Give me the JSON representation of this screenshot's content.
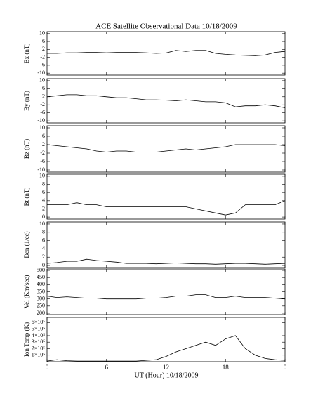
{
  "chart_data": [
    {
      "type": "line",
      "title": "ACE Satellite Observational Data   10/18/2009",
      "ylabel": "Bx (nT)",
      "color": "#000000",
      "x": [
        0,
        1,
        2,
        3,
        4,
        5,
        6,
        7,
        8,
        9,
        10,
        11,
        12,
        13,
        14,
        15,
        16,
        17,
        18,
        19,
        20,
        21,
        22,
        23,
        24
      ],
      "values": [
        0,
        0,
        0.3,
        0.3,
        0.5,
        0.5,
        0.3,
        0.5,
        0.5,
        0.5,
        0.3,
        0,
        0.2,
        1.5,
        1,
        1.5,
        1.5,
        0,
        -0.5,
        -0.8,
        -1,
        -1.2,
        -0.8,
        0.5,
        1
      ],
      "ylim": [
        -11,
        11
      ],
      "yticks": [
        -10,
        -6,
        -2,
        2,
        6,
        10
      ],
      "xlim": [
        0,
        24
      ]
    },
    {
      "type": "line",
      "ylabel": "By (nT)",
      "color": "#000000",
      "x": [
        0,
        1,
        2,
        3,
        4,
        5,
        6,
        7,
        8,
        9,
        10,
        11,
        12,
        13,
        14,
        15,
        16,
        17,
        18,
        19,
        20,
        21,
        22,
        23,
        24
      ],
      "values": [
        2,
        2.5,
        3,
        3,
        2.5,
        2.5,
        2,
        1.5,
        1.5,
        1,
        0.5,
        0.5,
        0.3,
        0,
        0.5,
        0,
        -0.5,
        -0.5,
        -1,
        -3,
        -2.5,
        -2.5,
        -2,
        -2.5,
        -3.5
      ],
      "ylim": [
        -11,
        11
      ],
      "yticks": [
        -10,
        -6,
        -2,
        2,
        6,
        10
      ],
      "xlim": [
        0,
        24
      ]
    },
    {
      "type": "line",
      "ylabel": "Bz (nT)",
      "color": "#000000",
      "x": [
        0,
        1,
        2,
        3,
        4,
        5,
        6,
        7,
        8,
        9,
        10,
        11,
        12,
        13,
        14,
        15,
        16,
        17,
        18,
        19,
        20,
        21,
        22,
        23,
        24
      ],
      "values": [
        2,
        1.5,
        1,
        0.5,
        0,
        -1,
        -1.5,
        -1,
        -1,
        -1.5,
        -1.5,
        -1.5,
        -1,
        -0.5,
        0,
        -0.5,
        0,
        0.5,
        1,
        2,
        2,
        2,
        2,
        2,
        1.5
      ],
      "ylim": [
        -11,
        11
      ],
      "yticks": [
        -10,
        -6,
        -2,
        2,
        6,
        10
      ],
      "xlim": [
        0,
        24
      ]
    },
    {
      "type": "line",
      "ylabel": "Bt (nT)",
      "color": "#000000",
      "x": [
        0,
        1,
        2,
        3,
        4,
        5,
        6,
        7,
        8,
        9,
        10,
        11,
        12,
        13,
        14,
        15,
        16,
        17,
        18,
        19,
        20,
        21,
        22,
        23,
        24
      ],
      "values": [
        3,
        3,
        3,
        3.5,
        3,
        3,
        2.5,
        2.5,
        2.5,
        2.5,
        2.5,
        2.5,
        2.5,
        2.5,
        2.5,
        2,
        1.5,
        1,
        0.5,
        1,
        3,
        3,
        3,
        3,
        4
      ],
      "ylim": [
        -0.5,
        10.5
      ],
      "yticks": [
        0,
        2,
        4,
        6,
        8,
        10
      ],
      "xlim": [
        0,
        24
      ]
    },
    {
      "type": "line",
      "ylabel": "Den (1/cc)",
      "color": "#000000",
      "x": [
        0,
        1,
        2,
        3,
        4,
        5,
        6,
        7,
        8,
        9,
        10,
        11,
        12,
        13,
        14,
        15,
        16,
        17,
        18,
        19,
        20,
        21,
        22,
        23,
        24
      ],
      "values": [
        0.5,
        0.7,
        1,
        1,
        1.5,
        1.2,
        1,
        0.8,
        0.5,
        0.5,
        0.5,
        0.4,
        0.5,
        0.6,
        0.5,
        0.4,
        0.4,
        0.3,
        0.4,
        0.5,
        0.5,
        0.4,
        0.3,
        0.4,
        0.5
      ],
      "ylim": [
        -0.5,
        10.5
      ],
      "yticks": [
        0,
        2,
        4,
        6,
        8,
        10
      ],
      "xlim": [
        0,
        24
      ]
    },
    {
      "type": "line",
      "ylabel": "Vel (Km/sec)",
      "color": "#000000",
      "x": [
        0,
        1,
        2,
        3,
        4,
        5,
        6,
        7,
        8,
        9,
        10,
        11,
        12,
        13,
        14,
        15,
        16,
        17,
        18,
        19,
        20,
        21,
        22,
        23,
        24
      ],
      "values": [
        320,
        310,
        315,
        310,
        305,
        305,
        300,
        300,
        300,
        300,
        305,
        305,
        310,
        320,
        320,
        330,
        330,
        310,
        310,
        320,
        310,
        310,
        310,
        305,
        300
      ],
      "ylim": [
        190,
        510
      ],
      "yticks": [
        200,
        250,
        300,
        350,
        400,
        450,
        500
      ],
      "xlim": [
        0,
        24
      ]
    },
    {
      "type": "line",
      "ylabel": "Ion Temp (K)",
      "xlabel": "UT (Hour)   10/18/2009",
      "color": "#000000",
      "x": [
        0,
        1,
        2,
        3,
        4,
        5,
        6,
        7,
        8,
        9,
        10,
        11,
        12,
        13,
        14,
        15,
        16,
        17,
        18,
        19,
        20,
        21,
        22,
        23,
        24
      ],
      "values": [
        10000,
        30000,
        15000,
        10000,
        10000,
        10000,
        10000,
        10000,
        10000,
        10000,
        20000,
        30000,
        80000,
        150000,
        200000,
        250000,
        300000,
        250000,
        350000,
        400000,
        200000,
        100000,
        50000,
        30000,
        20000
      ],
      "ylim": [
        0,
        680000
      ],
      "yticks": [
        {
          "value": 100000,
          "label": "1×10⁵"
        },
        {
          "value": 200000,
          "label": "2×10⁵"
        },
        {
          "value": 300000,
          "label": "3×10⁵"
        },
        {
          "value": 400000,
          "label": "4×10⁵"
        },
        {
          "value": 500000,
          "label": "5×10⁵"
        },
        {
          "value": 600000,
          "label": "6×10⁵"
        }
      ],
      "xlim": [
        0,
        24
      ],
      "xticks": [
        0,
        6,
        12,
        18,
        {
          "value": 24,
          "label": "0"
        }
      ]
    }
  ]
}
